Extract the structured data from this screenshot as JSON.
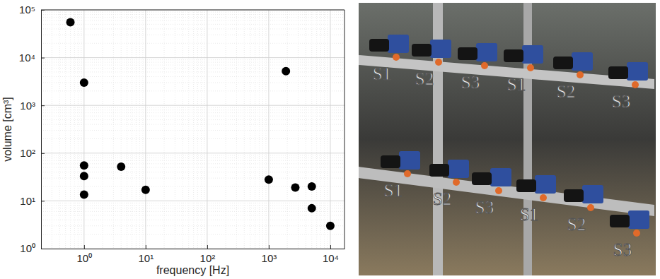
{
  "chart_data": {
    "type": "scatter",
    "xlabel": "frequency [Hz]",
    "ylabel": "volume [cm³]",
    "x": [
      0.6,
      1,
      1,
      1,
      1,
      4,
      10,
      1000,
      1900,
      2700,
      5000,
      5000,
      10000
    ],
    "values": [
      55000,
      3000,
      55,
      33,
      13.5,
      52,
      17,
      28,
      5200,
      19,
      20,
      7,
      3
    ],
    "xlim": [
      0.2,
      17000
    ],
    "ylim": [
      1,
      100000
    ],
    "xticks": [
      {
        "value": 1,
        "label": "10⁰"
      },
      {
        "value": 10,
        "label": "10¹"
      },
      {
        "value": 100,
        "label": "10²"
      },
      {
        "value": 1000,
        "label": "10³"
      },
      {
        "value": 10000,
        "label": "10⁴"
      }
    ],
    "yticks": [
      {
        "value": 1,
        "label": "10⁰"
      },
      {
        "value": 10,
        "label": "10¹"
      },
      {
        "value": 100,
        "label": "10²"
      },
      {
        "value": 1000,
        "label": "10³"
      },
      {
        "value": 10000,
        "label": "10⁴"
      },
      {
        "value": 100000,
        "label": "10⁵"
      }
    ],
    "log": true,
    "grid": true,
    "color": "#000000",
    "marker": "circle"
  },
  "image": {
    "labels": [
      "S1",
      "S2",
      "S3",
      "S1",
      "S2",
      "S3",
      "S1",
      "S2",
      "S3",
      "S1",
      "S2",
      "S3"
    ]
  }
}
